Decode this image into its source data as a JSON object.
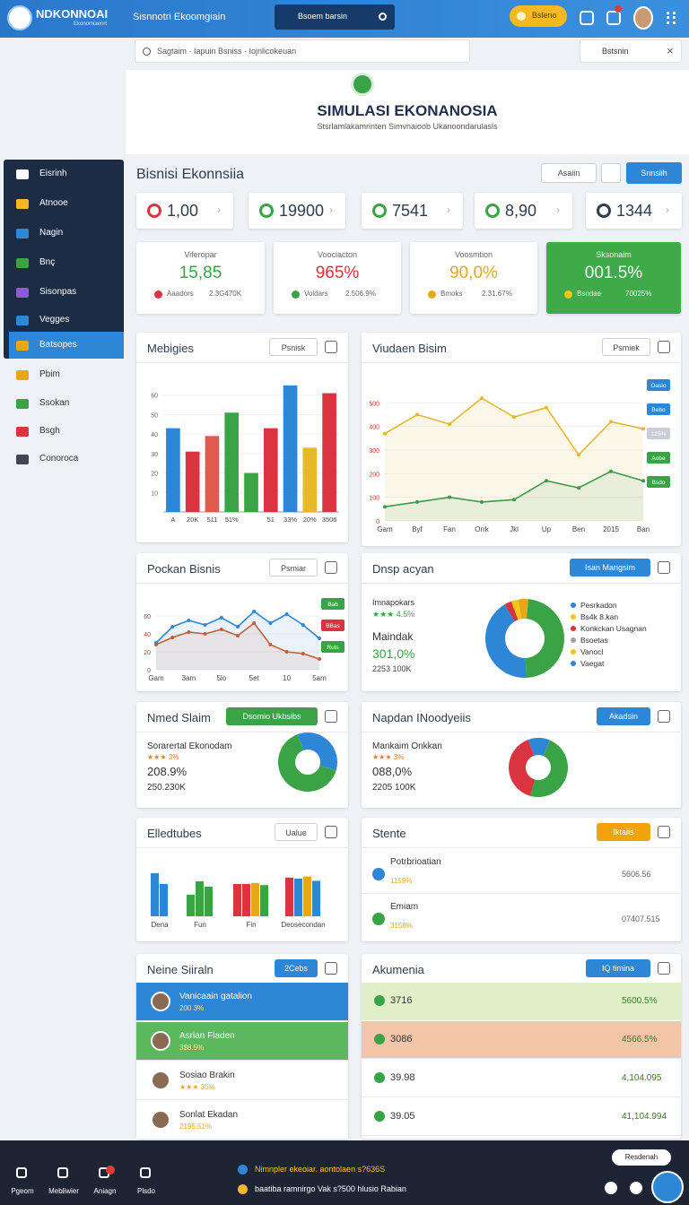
{
  "topbar": {
    "brand": "NDKONNOAI",
    "brand_sub": "Ekonomiaenrt",
    "app_title": "Sisnnotri Ekoomgiain",
    "search_button": "Bsoem barsin",
    "pill": "Bsleno"
  },
  "searchbar": {
    "placeholder": "Sagtaim · Iapuin Bsniss · Iojnlicokeuan",
    "right": "Bstsnin"
  },
  "hero": {
    "title": "SIMULASI EKONANOSIA",
    "subtitle": "Stsrlamlakamrinten Simvnaioob Ukanoondarulasls"
  },
  "sidebar": {
    "items": [
      "Eisrinh",
      "Atnooe",
      "Nagin",
      "Bnç",
      "Sisonpas",
      "Vegges",
      "Batsopes",
      "Pbim",
      "Ssokan",
      "Bsgh",
      "Conoroca"
    ],
    "active": 6
  },
  "main": {
    "heading": "Bisnisi Ekonnsiia",
    "filter": "Asaiin",
    "action": "Snnsiih"
  },
  "kpis": [
    {
      "value": "1,00",
      "color": "#d9343f"
    },
    {
      "value": "19900",
      "color": "#3aa345"
    },
    {
      "value": "7541",
      "color": "#3aa345"
    },
    {
      "value": "8,90",
      "color": "#3aa345"
    },
    {
      "value": "1344",
      "color": "#2c3e50"
    }
  ],
  "stats": [
    {
      "label": "Viferopar",
      "value": "15,85",
      "note": "Aaadors",
      "extra": "2.3G470K",
      "color": "#3aa345",
      "dot": "#d9343f",
      "highlight": false
    },
    {
      "label": "Voociacton",
      "value": "965%",
      "note": "Voldars",
      "extra": "2.506.9%",
      "color": "#d9343f",
      "dot": "#3aa345",
      "highlight": false
    },
    {
      "label": "Voosmtion",
      "value": "90,0%",
      "note": "Bmoks",
      "extra": "2.31.67%",
      "color": "#e6a817",
      "dot": "#e6a817",
      "highlight": false
    },
    {
      "label": "Sksonaim",
      "value": "001.5%",
      "note": "Bsndae",
      "extra": "70025%",
      "color": "#ffffff",
      "dot": "#f5c518",
      "highlight": true
    }
  ],
  "bar_chart": {
    "type": "bar",
    "title": "Mebigies",
    "button": "Psnisk",
    "categories": [
      "A",
      "20K",
      "511",
      "51%",
      null,
      "51",
      "33%",
      "20%",
      "3506"
    ],
    "values": [
      43,
      31,
      39,
      51,
      20,
      43,
      65,
      33,
      61
    ],
    "colors": [
      "#2e86d6",
      "#d9343f",
      "#e05a4f",
      "#3aa345",
      "#3aa345",
      "#d9343f",
      "#2e86d6",
      "#e6b82a",
      "#d9343f"
    ],
    "ylim": [
      0,
      70
    ],
    "yticks": [
      10,
      20,
      30,
      40,
      50,
      60
    ]
  },
  "line_chart": {
    "type": "line",
    "title": "Viudaen Bisim",
    "button": "Psmiek",
    "categories": [
      "Gam",
      "Byf",
      "Fan",
      "Orrk",
      "Jkl",
      "Up",
      "Ben",
      "2015",
      "Ban"
    ],
    "series": [
      {
        "color": "#e6b82a",
        "values": [
          370,
          450,
          410,
          520,
          440,
          480,
          280,
          420,
          390
        ]
      },
      {
        "color": "#3d9b4a",
        "values": [
          60,
          80,
          100,
          80,
          90,
          170,
          140,
          210,
          170
        ]
      }
    ],
    "ylim": [
      0,
      600
    ],
    "yticks": [
      0,
      100,
      200,
      300,
      400,
      500
    ],
    "tags": [
      {
        "label": "Oasio",
        "color": "#2e86d6"
      },
      {
        "label": "Bebo",
        "color": "#2e86d6"
      },
      {
        "label": "125%",
        "color": "#c9ced6"
      },
      {
        "label": "Aobe",
        "color": "#3aa345"
      },
      {
        "label": "Bsdo",
        "color": "#3aa345"
      }
    ]
  },
  "pocket_chart": {
    "type": "line",
    "title": "Pockan Bisnis",
    "button": "Psmiar",
    "categories": [
      "Gam",
      null,
      "3am",
      null,
      "5lo",
      null,
      "5et",
      null,
      "10",
      null,
      "5am"
    ],
    "series": [
      {
        "color": "#2e86d6",
        "values": [
          30,
          48,
          55,
          50,
          58,
          48,
          65,
          52,
          62,
          50,
          35
        ]
      },
      {
        "color": "#c0603e",
        "values": [
          28,
          36,
          42,
          40,
          45,
          38,
          52,
          28,
          20,
          18,
          12
        ]
      }
    ],
    "ylim": [
      0,
      80
    ],
    "yticks": [
      0,
      20,
      40,
      60
    ],
    "tags": [
      {
        "label": "Bab",
        "color": "#3aa345"
      },
      {
        "label": "BBas",
        "color": "#d9343f"
      },
      {
        "label": "Ruts",
        "color": "#3aa345"
      }
    ]
  },
  "donut_main": {
    "type": "pie",
    "title": "Dnsp acyan",
    "button": "Isan Mangsim",
    "label": "Imnapokars",
    "rating": "★★★ 4.5%",
    "name": "Maindak",
    "percent": "301,0%",
    "amount": "2253 100K",
    "segments": [
      {
        "color": "#f5c518",
        "value": 3
      },
      {
        "color": "#e6a817",
        "value": 4
      },
      {
        "color": "#3aa345",
        "value": 48
      },
      {
        "color": "#2e86d6",
        "value": 42
      },
      {
        "color": "#d9343f",
        "value": 3
      }
    ],
    "legend": [
      {
        "label": "Pesrkadon",
        "color": "#2e86d6"
      },
      {
        "label": "Bs4k 8.kan",
        "color": "#f5c518"
      },
      {
        "label": "Konkckan Usagnan",
        "color": "#d9343f"
      },
      {
        "label": "Bsoetas",
        "color": "#9aa3ad"
      },
      {
        "label": "Vanocl",
        "color": "#f5c518"
      },
      {
        "label": "Vaegat",
        "color": "#2e86d6"
      }
    ]
  },
  "donut_a": {
    "type": "pie",
    "title": "Nmed Slaim",
    "badge": "Dsomio Ukbsibs",
    "name": "Sorarertal Ekonodam",
    "rating": "★★★ 3%",
    "percent": "208.9%",
    "amount": "250.230K",
    "segments": [
      {
        "color": "#2e86d6",
        "value": 35
      },
      {
        "color": "#3aa345",
        "value": 65
      }
    ]
  },
  "donut_b": {
    "type": "pie",
    "title": "Napdan INoodyeiis",
    "badge": "Akadsin",
    "name": "Mankaim Onkkan",
    "rating": "★★★ 3%",
    "percent": "088,0%",
    "amount": "2205 100K",
    "segments": [
      {
        "color": "#2e86d6",
        "value": 12
      },
      {
        "color": "#3aa345",
        "value": 48
      },
      {
        "color": "#d9343f",
        "value": 40
      }
    ]
  },
  "groups_chart": {
    "type": "bar",
    "title": "Elledtubes",
    "button": "Ualue",
    "ylim": [
      0,
      100
    ],
    "groups": [
      {
        "label": "Dena",
        "bars": [
          {
            "value": 80,
            "color": "#2e86d6"
          },
          {
            "value": 60,
            "color": "#2e86d6"
          }
        ]
      },
      {
        "label": "Fun",
        "bars": [
          {
            "value": 40,
            "color": "#3aa345"
          },
          {
            "value": 65,
            "color": "#3aa345"
          },
          {
            "value": 55,
            "color": "#3aa345"
          }
        ]
      },
      {
        "label": "Fin",
        "bars": [
          {
            "value": 60,
            "color": "#d9343f"
          },
          {
            "value": 60,
            "color": "#d9343f"
          },
          {
            "value": 62,
            "color": "#e6a817"
          },
          {
            "value": 58,
            "color": "#3aa345"
          }
        ]
      },
      {
        "label": "Deosecondan",
        "bars": [
          {
            "value": 72,
            "color": "#d9343f"
          },
          {
            "value": 70,
            "color": "#2e86d6"
          },
          {
            "value": 74,
            "color": "#e6a817"
          },
          {
            "value": 66,
            "color": "#2e86d6"
          }
        ]
      }
    ]
  },
  "stente": {
    "title": "Stente",
    "button": "Iktaiis",
    "rows": [
      {
        "title": "Potrbrioatian",
        "sub": "1159%",
        "value": "5606.56",
        "color": "#2e86d6"
      },
      {
        "title": "Emiam",
        "sub": "3158%",
        "value": "07407.515",
        "color": "#3aa345"
      }
    ]
  },
  "neine": {
    "title": "Neine Siiraln",
    "button": "2Cebs",
    "rows": [
      {
        "name": "Vanicaain gatalion",
        "sub": "200 3%",
        "bg": "#2e86d6"
      },
      {
        "name": "Asrian Fladen",
        "sub": "3$8.5%",
        "bg": "#5cb85c"
      },
      {
        "name": "Sosiao Brakin",
        "sub": "★★★ 35%",
        "bg": "#ffffff"
      },
      {
        "name": "Sonlat Ekadan",
        "sub": "2195.51%",
        "bg": "#ffffff"
      }
    ]
  },
  "akumenia": {
    "title": "Akumenia",
    "button": "IQ timina",
    "rows": [
      {
        "name": "3716",
        "value": "5600.5%",
        "bg": "#dff0c8"
      },
      {
        "name": "3086",
        "value": "4566.5%",
        "bg": "#f4c5a8"
      },
      {
        "name": "39.98",
        "value": "4,104.095",
        "bg": "#ffffff"
      },
      {
        "name": "39.05",
        "value": "41,104.994",
        "bg": "#ffffff"
      }
    ]
  },
  "bottombar": {
    "nav": [
      "Pgeom",
      "Mebliwier",
      "Aniagn",
      "Plsdo"
    ],
    "messages": [
      "Nimnpler ekeoiar. aontolaen s?636S",
      "baatiba ramnirgo Vak s?500 hlusio Rabian"
    ],
    "button": "Resdenah"
  }
}
